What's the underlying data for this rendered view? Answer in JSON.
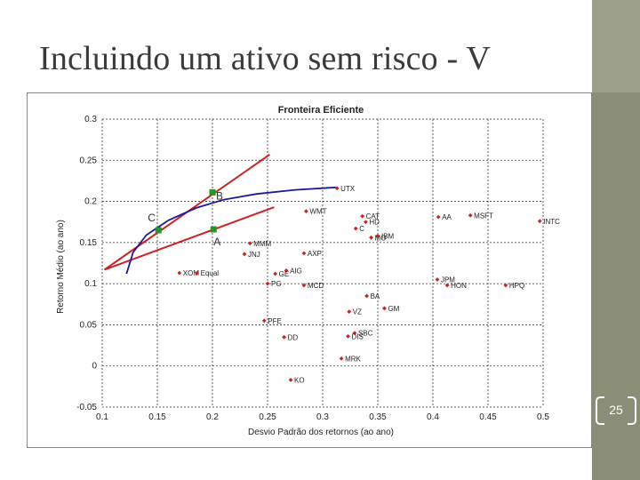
{
  "slide": {
    "title": "Incluindo um ativo sem risco - V",
    "page_number": "25"
  },
  "colors": {
    "points": "#cc2222",
    "frontier": "#1a1a99",
    "cal_lines": "#cc2222",
    "markers": "#229922",
    "grid": "#333333"
  },
  "chart_data": {
    "type": "scatter",
    "title": "Fronteira Eficiente",
    "xlabel": "Desvio Padrão dos retornos (ao ano)",
    "ylabel": "Retorno Médio (ao ano)",
    "xlim": [
      0.1,
      0.5
    ],
    "ylim": [
      -0.05,
      0.3
    ],
    "x_ticks": [
      "0.1",
      "0.15",
      "0.2",
      "0.25",
      "0.3",
      "0.35",
      "0.4",
      "0.45",
      "0.5"
    ],
    "y_ticks": [
      "-0.05",
      "0",
      "0.05",
      "0.1",
      "0.15",
      "0.2",
      "0.25",
      "0.3"
    ],
    "grid": true,
    "points": [
      {
        "label": "UTX",
        "x": 0.313,
        "y": 0.216
      },
      {
        "label": "WMT",
        "x": 0.285,
        "y": 0.188
      },
      {
        "label": "CAT",
        "x": 0.336,
        "y": 0.182
      },
      {
        "label": "HD",
        "x": 0.339,
        "y": 0.175
      },
      {
        "label": "C",
        "x": 0.33,
        "y": 0.167
      },
      {
        "label": "IBM",
        "x": 0.35,
        "y": 0.158
      },
      {
        "label": "MO",
        "x": 0.344,
        "y": 0.156
      },
      {
        "label": "AA",
        "x": 0.405,
        "y": 0.181
      },
      {
        "label": "MSFT",
        "x": 0.434,
        "y": 0.183
      },
      {
        "label": "INTC",
        "x": 0.497,
        "y": 0.176
      },
      {
        "label": "MMM",
        "x": 0.234,
        "y": 0.149
      },
      {
        "label": "JNJ",
        "x": 0.229,
        "y": 0.136
      },
      {
        "label": "AXP",
        "x": 0.283,
        "y": 0.137
      },
      {
        "label": "AIG",
        "x": 0.267,
        "y": 0.116
      },
      {
        "label": "GE",
        "x": 0.257,
        "y": 0.112
      },
      {
        "label": "PG",
        "x": 0.25,
        "y": 0.1
      },
      {
        "label": "MCD",
        "x": 0.283,
        "y": 0.098
      },
      {
        "label": "XOM",
        "x": 0.17,
        "y": 0.113
      },
      {
        "label": "Equal",
        "x": 0.186,
        "y": 0.113
      },
      {
        "label": "JPM",
        "x": 0.404,
        "y": 0.105
      },
      {
        "label": "HON",
        "x": 0.413,
        "y": 0.098
      },
      {
        "label": "HPQ",
        "x": 0.466,
        "y": 0.098
      },
      {
        "label": "BA",
        "x": 0.34,
        "y": 0.085
      },
      {
        "label": "GM",
        "x": 0.356,
        "y": 0.07
      },
      {
        "label": "VZ",
        "x": 0.324,
        "y": 0.066
      },
      {
        "label": "PFE",
        "x": 0.247,
        "y": 0.055
      },
      {
        "label": "SBC",
        "x": 0.329,
        "y": 0.04
      },
      {
        "label": "DIS",
        "x": 0.323,
        "y": 0.036
      },
      {
        "label": "DD",
        "x": 0.265,
        "y": 0.035
      },
      {
        "label": "MRK",
        "x": 0.317,
        "y": 0.009
      },
      {
        "label": "KO",
        "x": 0.271,
        "y": -0.017
      }
    ],
    "frontier": [
      [
        0.122,
        0.112
      ],
      [
        0.128,
        0.138
      ],
      [
        0.14,
        0.159
      ],
      [
        0.16,
        0.177
      ],
      [
        0.185,
        0.192
      ],
      [
        0.21,
        0.202
      ],
      [
        0.24,
        0.209
      ],
      [
        0.275,
        0.214
      ],
      [
        0.312,
        0.217
      ]
    ],
    "lines": [
      {
        "from": [
          0.102,
          0.117
        ],
        "to": [
          0.252,
          0.257
        ]
      },
      {
        "from": [
          0.102,
          0.117
        ],
        "to": [
          0.256,
          0.193
        ]
      }
    ],
    "markers": [
      {
        "label": "B",
        "x": 0.2,
        "y": 0.211
      },
      {
        "label": "C",
        "x": 0.151,
        "y": 0.165
      },
      {
        "label": "A",
        "x": 0.201,
        "y": 0.166
      }
    ]
  }
}
